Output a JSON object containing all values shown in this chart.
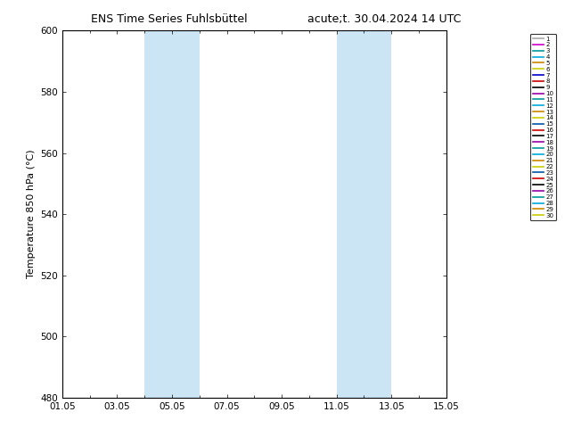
{
  "title_left": "ENS Time Series Fuhlsbüttel",
  "title_right": "acute;t. 30.04.2024 14 UTC",
  "ylabel": "Temperature 850 hPa (°C)",
  "ylim": [
    480,
    600
  ],
  "yticks": [
    480,
    500,
    520,
    540,
    560,
    580,
    600
  ],
  "xtick_labels": [
    "01.05",
    "03.05",
    "05.05",
    "07.05",
    "09.05",
    "11.05",
    "13.05",
    "15.05"
  ],
  "xtick_positions": [
    0,
    2,
    4,
    6,
    8,
    10,
    12,
    14
  ],
  "xlim": [
    0,
    14
  ],
  "shade_bands": [
    {
      "xmin": 3.0,
      "xmax": 5.0
    },
    {
      "xmin": 10.0,
      "xmax": 12.0
    }
  ],
  "shade_color": "#cce5f5",
  "background_color": "#ffffff",
  "n_members": 30,
  "legend_colors": [
    "#aaaaaa",
    "#cc00cc",
    "#009999",
    "#00aacc",
    "#cc8800",
    "#cccc00",
    "#0000cc",
    "#cc0000",
    "#000000",
    "#9900aa",
    "#009999",
    "#00aacc",
    "#cc8800",
    "#cccc00",
    "#0066aa",
    "#cc0000",
    "#000000",
    "#9900aa",
    "#009999",
    "#00aacc",
    "#cc8800",
    "#cccc00",
    "#0066aa",
    "#cc0000",
    "#000000",
    "#9900aa",
    "#009999",
    "#00aacc",
    "#cc8800",
    "#cccc00"
  ],
  "figsize": [
    6.34,
    4.9
  ],
  "dpi": 100
}
